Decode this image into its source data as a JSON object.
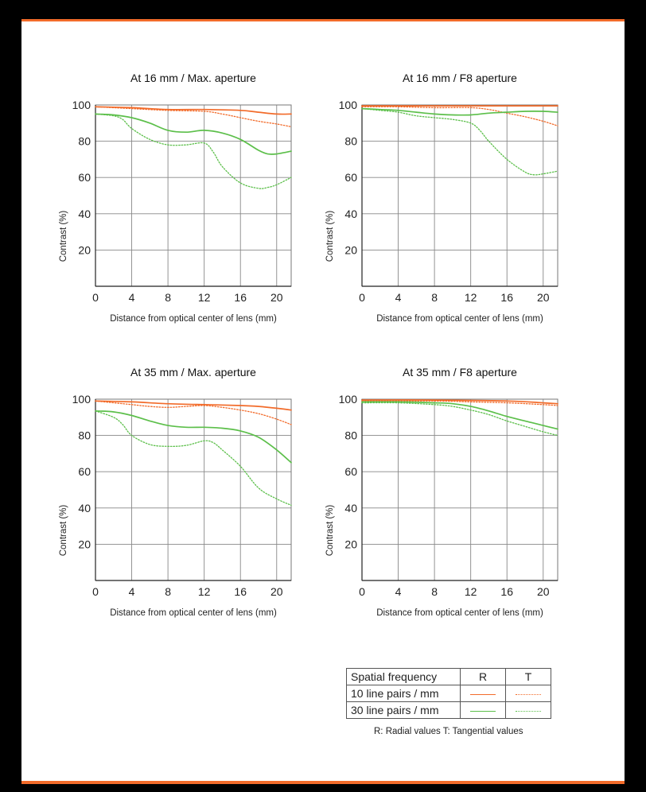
{
  "colors": {
    "r10": "#f26b2a",
    "t10": "#f26b2a",
    "r30": "#5cbf4a",
    "t30": "#5cbf4a",
    "grid": "#888888"
  },
  "chart_data": [
    {
      "type": "line",
      "title": "At 16 mm / Max. aperture",
      "xlabel": "Distance from optical center of lens (mm)",
      "ylabel": "Contrast (%)",
      "xlim": [
        0,
        21.6
      ],
      "ylim": [
        0,
        100
      ],
      "xticks": [
        0,
        4,
        8,
        12,
        16,
        20
      ],
      "yticks": [
        20,
        40,
        60,
        80,
        100
      ],
      "grid": true,
      "series": [
        {
          "name": "10 line pairs / mm",
          "role": "r10",
          "x": [
            0,
            4,
            8,
            12,
            16,
            18,
            20,
            21.6
          ],
          "y": [
            99,
            98.5,
            97.5,
            97.5,
            97,
            96,
            95,
            95
          ]
        },
        {
          "name": "10 line pairs / mm",
          "role": "t10",
          "x": [
            0,
            4,
            8,
            12,
            14,
            16,
            18,
            20,
            21.6
          ],
          "y": [
            99,
            98,
            97,
            96.5,
            95,
            93,
            91,
            89.5,
            88
          ]
        },
        {
          "name": "30 line pairs / mm",
          "role": "r30",
          "x": [
            0,
            2,
            4,
            6,
            8,
            10,
            12,
            14,
            16,
            18,
            19,
            20,
            21.6
          ],
          "y": [
            95,
            94.5,
            93,
            90,
            86,
            85,
            86,
            84.5,
            81,
            75,
            73,
            73,
            74.5
          ]
        },
        {
          "name": "30 line pairs / mm",
          "role": "t30",
          "x": [
            0,
            2,
            3,
            4,
            6,
            8,
            10,
            12,
            13,
            14,
            16,
            18,
            19,
            20,
            21.6
          ],
          "y": [
            95,
            94,
            92,
            87,
            81,
            78,
            78,
            79,
            74,
            66,
            57,
            54,
            54.5,
            56,
            60
          ]
        }
      ]
    },
    {
      "type": "line",
      "title": "At 16 mm / F8 aperture",
      "xlabel": "Distance from optical center of lens (mm)",
      "ylabel": "Contrast (%)",
      "xlim": [
        0,
        21.6
      ],
      "ylim": [
        0,
        100
      ],
      "xticks": [
        0,
        4,
        8,
        12,
        16,
        20
      ],
      "yticks": [
        20,
        40,
        60,
        80,
        100
      ],
      "grid": true,
      "series": [
        {
          "name": "10 line pairs / mm",
          "role": "r10",
          "x": [
            0,
            8,
            16,
            21.6
          ],
          "y": [
            99.5,
            99.5,
            99.5,
            99.5
          ]
        },
        {
          "name": "10 line pairs / mm",
          "role": "t10",
          "x": [
            0,
            4,
            8,
            12,
            14,
            16,
            18,
            20,
            21.6
          ],
          "y": [
            99,
            99,
            98.5,
            98.5,
            97.5,
            95.5,
            93.5,
            91,
            88.5
          ]
        },
        {
          "name": "30 line pairs / mm",
          "role": "r30",
          "x": [
            0,
            2,
            4,
            6,
            8,
            10,
            12,
            14,
            16,
            18,
            20,
            21.6
          ],
          "y": [
            98,
            97.5,
            97,
            96,
            95,
            94.5,
            94.5,
            95.5,
            96,
            96.5,
            96.5,
            96
          ]
        },
        {
          "name": "30 line pairs / mm",
          "role": "t30",
          "x": [
            0,
            2,
            4,
            6,
            8,
            10,
            12,
            13,
            14,
            16,
            18,
            19,
            20,
            21.6
          ],
          "y": [
            98,
            97,
            96,
            94,
            93,
            92,
            90,
            86,
            80,
            70,
            63,
            61.5,
            62,
            63.5
          ]
        }
      ]
    },
    {
      "type": "line",
      "title": "At 35 mm / Max. aperture",
      "xlabel": "Distance from optical center of lens (mm)",
      "ylabel": "Contrast (%)",
      "xlim": [
        0,
        21.6
      ],
      "ylim": [
        0,
        100
      ],
      "xticks": [
        0,
        4,
        8,
        12,
        16,
        20
      ],
      "yticks": [
        20,
        40,
        60,
        80,
        100
      ],
      "grid": true,
      "series": [
        {
          "name": "10 line pairs / mm",
          "role": "r10",
          "x": [
            0,
            4,
            8,
            12,
            16,
            18,
            20,
            21.6
          ],
          "y": [
            99,
            98.5,
            97.5,
            97,
            96.5,
            96,
            95,
            94
          ]
        },
        {
          "name": "10 line pairs / mm",
          "role": "t10",
          "x": [
            0,
            4,
            6,
            8,
            10,
            12,
            14,
            16,
            18,
            20,
            21.6
          ],
          "y": [
            99,
            97,
            96,
            95.5,
            96,
            96.5,
            95.5,
            94,
            92,
            89,
            86
          ]
        },
        {
          "name": "30 line pairs / mm",
          "role": "r30",
          "x": [
            0,
            2,
            4,
            6,
            8,
            10,
            12,
            14,
            16,
            18,
            20,
            21.6
          ],
          "y": [
            93.5,
            93,
            91,
            88,
            85.5,
            84.5,
            84.5,
            84,
            82.5,
            79,
            72,
            65
          ]
        },
        {
          "name": "30 line pairs / mm",
          "role": "t30",
          "x": [
            0,
            2,
            3,
            4,
            6,
            8,
            10,
            12,
            13,
            14,
            16,
            18,
            20,
            21.6
          ],
          "y": [
            93.5,
            90,
            86,
            80,
            75,
            74,
            74.5,
            77,
            76,
            72,
            63,
            51,
            45,
            41.5
          ]
        }
      ]
    },
    {
      "type": "line",
      "title": "At 35 mm / F8 aperture",
      "xlabel": "Distance from optical center of lens (mm)",
      "ylabel": "Contrast (%)",
      "xlim": [
        0,
        21.6
      ],
      "ylim": [
        0,
        100
      ],
      "xticks": [
        0,
        4,
        8,
        12,
        16,
        20
      ],
      "yticks": [
        20,
        40,
        60,
        80,
        100
      ],
      "grid": true,
      "series": [
        {
          "name": "10 line pairs / mm",
          "role": "r10",
          "x": [
            0,
            8,
            16,
            20,
            21.6
          ],
          "y": [
            99.5,
            99.5,
            99,
            98,
            97.5
          ]
        },
        {
          "name": "10 line pairs / mm",
          "role": "t10",
          "x": [
            0,
            8,
            12,
            16,
            20,
            21.6
          ],
          "y": [
            99,
            99,
            98.5,
            98,
            97,
            96.5
          ]
        },
        {
          "name": "30 line pairs / mm",
          "role": "r30",
          "x": [
            0,
            4,
            8,
            10,
            12,
            14,
            16,
            18,
            20,
            21.6
          ],
          "y": [
            98.5,
            98.5,
            98,
            97.5,
            96,
            93.5,
            90.5,
            88,
            85.5,
            83.5
          ]
        },
        {
          "name": "30 line pairs / mm",
          "role": "t30",
          "x": [
            0,
            4,
            8,
            10,
            12,
            14,
            16,
            18,
            20,
            21.6
          ],
          "y": [
            98,
            98,
            97,
            96,
            94,
            91.5,
            88,
            85,
            82,
            80
          ]
        }
      ]
    }
  ],
  "legend": {
    "header": "Spatial frequency",
    "col_r": "R",
    "col_t": "T",
    "row1": "10 line pairs / mm",
    "row2": "30 line pairs / mm",
    "note": "R: Radial values  T: Tangential values"
  }
}
